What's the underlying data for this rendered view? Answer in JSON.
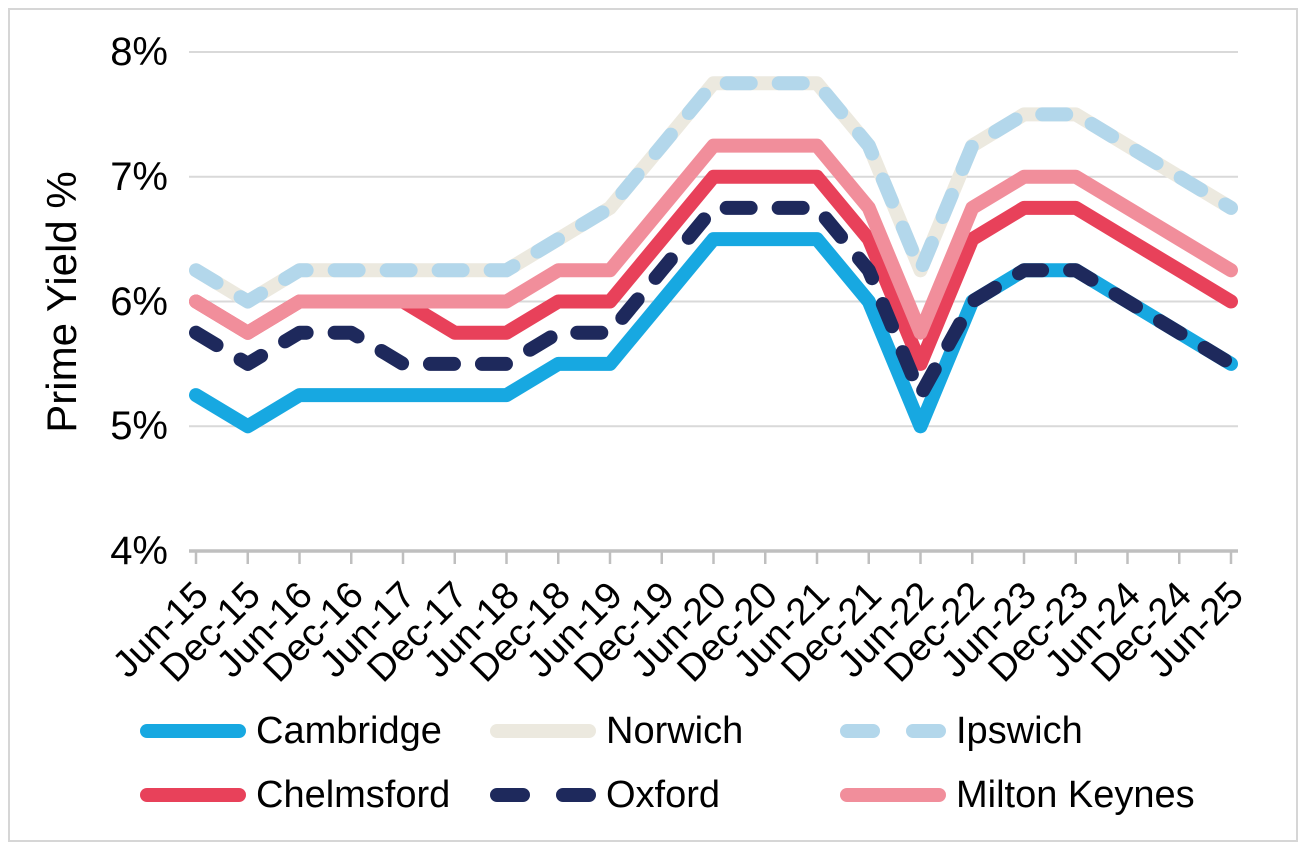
{
  "chart_data": {
    "type": "line",
    "title": "",
    "ylabel": "Prime Yield %",
    "xlabel": "",
    "ylim": [
      4,
      8
    ],
    "grid": true,
    "legend_position": "bottom",
    "y_ticks": [
      {
        "label": "8%",
        "value": 8
      },
      {
        "label": "7%",
        "value": 7
      },
      {
        "label": "6%",
        "value": 6
      },
      {
        "label": "5%",
        "value": 5
      },
      {
        "label": "4%",
        "value": 4
      }
    ],
    "categories": [
      "Jun-15",
      "Dec-15",
      "Jun-16",
      "Dec-16",
      "Jun-17",
      "Dec-17",
      "Jun-18",
      "Dec-18",
      "Jun-19",
      "Dec-19",
      "Jun-20",
      "Dec-20",
      "Jun-21",
      "Dec-21",
      "Jun-22",
      "Dec-22",
      "Jun-23",
      "Dec-23",
      "Jun-24",
      "Dec-24",
      "Jun-25"
    ],
    "series": [
      {
        "name": "Norwich",
        "color": "#ECE9DF",
        "dash": false,
        "values": [
          6.25,
          6.0,
          6.25,
          6.25,
          6.25,
          6.25,
          6.25,
          6.5,
          6.75,
          7.25,
          7.75,
          7.75,
          7.75,
          7.25,
          6.25,
          7.25,
          7.5,
          7.5,
          7.25,
          7.0,
          6.75
        ]
      },
      {
        "name": "Chelmsford",
        "color": "#E8415A",
        "dash": false,
        "values": [
          6.0,
          5.75,
          6.0,
          6.0,
          6.0,
          5.75,
          5.75,
          6.0,
          6.0,
          6.5,
          7.0,
          7.0,
          7.0,
          6.5,
          5.5,
          6.5,
          6.75,
          6.75,
          6.5,
          6.25,
          6.0
        ]
      },
      {
        "name": "Milton Keynes",
        "color": "#F18E9B",
        "dash": false,
        "values": [
          6.0,
          5.75,
          6.0,
          6.0,
          6.0,
          6.0,
          6.0,
          6.25,
          6.25,
          6.75,
          7.25,
          7.25,
          7.25,
          6.75,
          5.75,
          6.75,
          7.0,
          7.0,
          6.75,
          6.5,
          6.25
        ]
      },
      {
        "name": "Cambridge",
        "color": "#17A8E1",
        "dash": false,
        "values": [
          5.25,
          5.0,
          5.25,
          5.25,
          5.25,
          5.25,
          5.25,
          5.5,
          5.5,
          6.0,
          6.5,
          6.5,
          6.5,
          6.0,
          5.0,
          6.0,
          6.25,
          6.25,
          6.0,
          5.75,
          5.5
        ]
      },
      {
        "name": "Ipswich",
        "color": "#B3D7EB",
        "dash": true,
        "values": [
          6.25,
          6.0,
          6.25,
          6.25,
          6.25,
          6.25,
          6.25,
          6.5,
          6.75,
          7.25,
          7.75,
          7.75,
          7.75,
          7.25,
          6.25,
          7.25,
          7.5,
          7.5,
          7.25,
          7.0,
          6.75
        ]
      },
      {
        "name": "Oxford",
        "color": "#1E295C",
        "dash": true,
        "values": [
          5.75,
          5.5,
          5.75,
          5.75,
          5.5,
          5.5,
          5.5,
          5.75,
          5.75,
          6.25,
          6.75,
          6.75,
          6.75,
          6.25,
          5.25,
          6.0,
          6.25,
          6.25,
          6.0,
          5.75,
          5.5
        ]
      }
    ],
    "legend_order": [
      "Cambridge",
      "Norwich",
      "Ipswich",
      "Chelmsford",
      "Oxford",
      "Milton Keynes"
    ]
  },
  "style": {
    "gridline_color": "#D9D9D9",
    "axis_color": "#BFBFBF",
    "line_width": 14,
    "dash_pattern": "24 28",
    "text_color": "#000000"
  }
}
